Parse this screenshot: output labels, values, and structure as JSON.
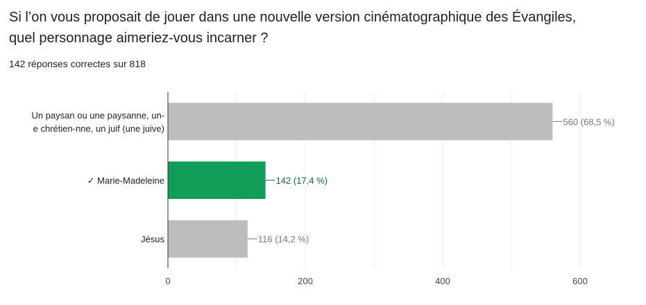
{
  "question": {
    "title": "Si l’on vous proposait de jouer dans une nouvelle version cinématographique des Évangiles, quel personnage aimeriez-vous incarner ?",
    "summary": "142 réponses correctes sur 818"
  },
  "colors": {
    "bar_default": "#bdbdbd",
    "bar_correct": "#0f9d58",
    "label_default": "#757575",
    "label_correct": "#0b6b3c",
    "grid": "#eeeeee",
    "axis": "#333333"
  },
  "chart_data": {
    "type": "bar",
    "orientation": "horizontal",
    "categories": [
      [
        "Un paysan ou une paysanne, un-",
        "e chrétien-nne, un juif (une juive)"
      ],
      [
        "✓ Marie-Madeleine"
      ],
      [
        "Jésus"
      ]
    ],
    "values": [
      560,
      142,
      116
    ],
    "value_labels": [
      "560 (68,5 %)",
      "142 (17,4 %)",
      "116 (14,2 %)"
    ],
    "correct": [
      false,
      true,
      false
    ],
    "xlim": [
      0,
      600
    ],
    "xticks": [
      0,
      200,
      400,
      600
    ],
    "xtick_labels": [
      "0",
      "200",
      "400",
      "600"
    ],
    "minor_grid_step": 100,
    "grid": true,
    "title": "",
    "xlabel": "",
    "ylabel": ""
  }
}
